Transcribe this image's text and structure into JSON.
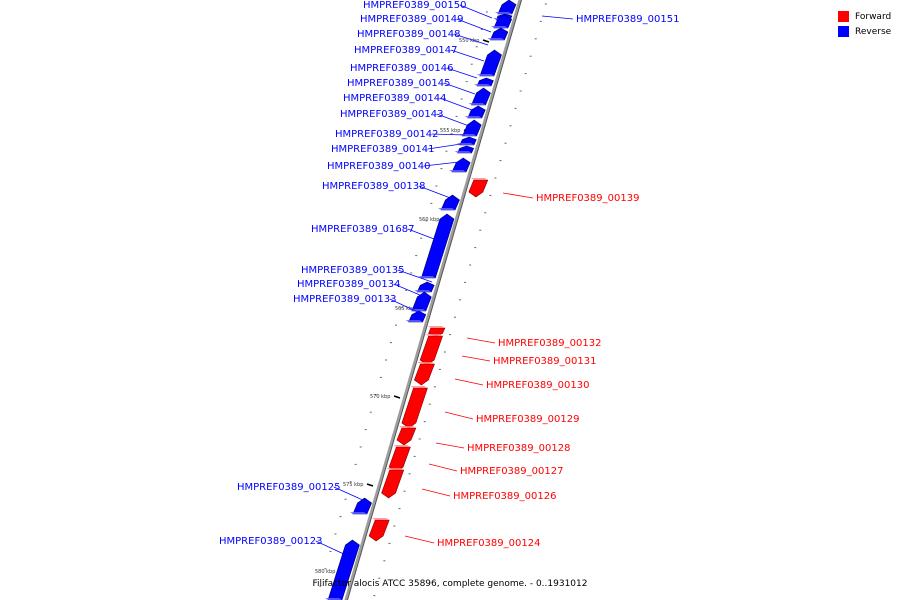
{
  "footer": "Filifactor alocis ATCC 35896, complete genome. - 0..1931012",
  "legend": [
    {
      "label": "Forward",
      "color": "#ff0000"
    },
    {
      "label": "Reverse",
      "color": "#0000ff"
    }
  ],
  "colors": {
    "forward": "#ff0000",
    "reverse": "#0000ff",
    "backbone": "#9e9e9e"
  },
  "scale_ticks": [
    "550 kbp",
    "555 kbp",
    "560 kbp",
    "565 kbp",
    "570 kbp",
    "575 kbp",
    "580 kbp"
  ],
  "genes": [
    {
      "name": "HMPREF0389_00150",
      "strand": "reverse"
    },
    {
      "name": "HMPREF0389_00151",
      "strand": "reverse"
    },
    {
      "name": "HMPREF0389_00149",
      "strand": "reverse"
    },
    {
      "name": "HMPREF0389_00148",
      "strand": "reverse"
    },
    {
      "name": "HMPREF0389_00147",
      "strand": "reverse"
    },
    {
      "name": "HMPREF0389_00146",
      "strand": "reverse"
    },
    {
      "name": "HMPREF0389_00145",
      "strand": "reverse"
    },
    {
      "name": "HMPREF0389_00144",
      "strand": "reverse"
    },
    {
      "name": "HMPREF0389_00143",
      "strand": "reverse"
    },
    {
      "name": "HMPREF0389_00142",
      "strand": "reverse"
    },
    {
      "name": "HMPREF0389_00141",
      "strand": "reverse"
    },
    {
      "name": "HMPREF0389_00140",
      "strand": "reverse"
    },
    {
      "name": "HMPREF0389_00139",
      "strand": "forward"
    },
    {
      "name": "HMPREF0389_00138",
      "strand": "reverse"
    },
    {
      "name": "HMPREF0389_01687",
      "strand": "reverse"
    },
    {
      "name": "HMPREF0389_00135",
      "strand": "reverse"
    },
    {
      "name": "HMPREF0389_00134",
      "strand": "reverse"
    },
    {
      "name": "HMPREF0389_00133",
      "strand": "reverse"
    },
    {
      "name": "HMPREF0389_00132",
      "strand": "forward"
    },
    {
      "name": "HMPREF0389_00131",
      "strand": "forward"
    },
    {
      "name": "HMPREF0389_00130",
      "strand": "forward"
    },
    {
      "name": "HMPREF0389_00129",
      "strand": "forward"
    },
    {
      "name": "HMPREF0389_00128",
      "strand": "forward"
    },
    {
      "name": "HMPREF0389_00127",
      "strand": "forward"
    },
    {
      "name": "HMPREF0389_00126",
      "strand": "forward"
    },
    {
      "name": "HMPREF0389_00125",
      "strand": "reverse"
    },
    {
      "name": "HMPREF0389_00124",
      "strand": "forward"
    },
    {
      "name": "HMPREF0389_00123",
      "strand": "reverse"
    }
  ]
}
